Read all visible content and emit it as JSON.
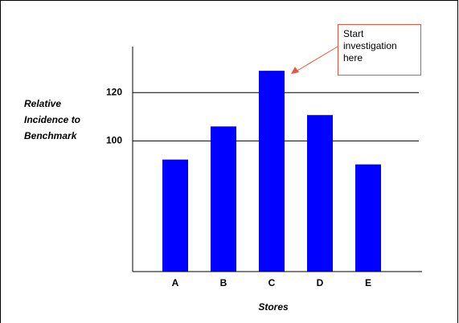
{
  "chart_data": {
    "type": "bar",
    "categories": [
      "A",
      "B",
      "C",
      "D",
      "E"
    ],
    "values": [
      92.3,
      106,
      129,
      110.7,
      90.3
    ],
    "color": "#0000ff",
    "ylim": [
      46,
      139
    ],
    "yticks": [
      100,
      120
    ],
    "grid": true,
    "ylabel": "Relative Incidence to Benchmark",
    "xlabel": "Stores",
    "annotation": "Start investigation here"
  }
}
